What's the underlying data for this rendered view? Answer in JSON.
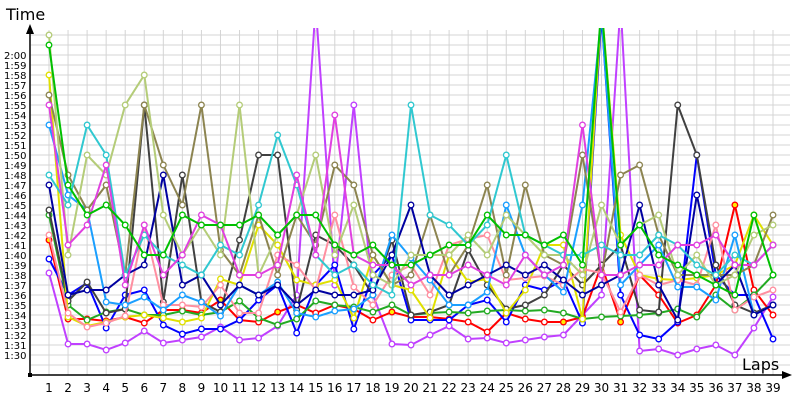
{
  "chart_data": {
    "type": "line",
    "title": "",
    "ylabel": "Time",
    "xlabel": "Laps",
    "ylim_seconds": [
      90,
      120
    ],
    "y_tick_labels": [
      "1:30",
      "1:31",
      "1:32",
      "1:33",
      "1:34",
      "1:35",
      "1:36",
      "1:37",
      "1:38",
      "1:39",
      "1:40",
      "1:41",
      "1:42",
      "1:43",
      "1:44",
      "1:45",
      "1:46",
      "1:47",
      "1:48",
      "1:49",
      "1:50",
      "1:51",
      "1:52",
      "1:53",
      "1:54",
      "1:55",
      "1:56",
      "1:57",
      "1:58",
      "1:59",
      "2:00"
    ],
    "x": [
      1,
      2,
      3,
      4,
      5,
      6,
      7,
      8,
      9,
      10,
      11,
      12,
      13,
      14,
      15,
      16,
      17,
      18,
      19,
      20,
      21,
      22,
      23,
      24,
      25,
      26,
      27,
      28,
      29,
      30,
      31,
      32,
      33,
      34,
      35,
      36,
      37,
      38,
      39
    ],
    "grid": true,
    "legend": "none",
    "series": [
      {
        "color": "#c040ff",
        "values": [
          98.2,
          91.1,
          91.1,
          90.5,
          91.2,
          92.4,
          91.2,
          91.5,
          91.8,
          92.8,
          91.5,
          91.7,
          92.9,
          96,
          125,
          97,
          115,
          96,
          91.1,
          91,
          92,
          92.9,
          91.6,
          91.7,
          91.2,
          91.5,
          91.8,
          92,
          94,
          96,
          125,
          90.4,
          90.6,
          90,
          90.6,
          91,
          90,
          92.7,
          95.8
        ]
      },
      {
        "color": "#ff0000",
        "values": [
          101.5,
          93.6,
          93.6,
          93.4,
          93.8,
          93.2,
          94.5,
          94.5,
          94.2,
          95.5,
          93.5,
          93.3,
          94.3,
          95,
          94.2,
          95,
          94.6,
          93.5,
          94.3,
          93.8,
          93.8,
          93.6,
          93.3,
          92.3,
          94.2,
          93.6,
          93.3,
          93.3,
          93.8,
          99,
          93.3,
          98,
          96,
          93.2,
          94,
          97,
          105,
          96.5,
          94
        ]
      },
      {
        "color": "#0000ff",
        "values": [
          99.6,
          96,
          97.2,
          92.7,
          96,
          96.5,
          93,
          92.1,
          92.6,
          92.6,
          93.5,
          95.5,
          97,
          92.2,
          97,
          99,
          92.6,
          98,
          100,
          93.5,
          93.5,
          93.5,
          95,
          95.5,
          93.3,
          97,
          96.5,
          97.5,
          93.2,
          124,
          96,
          92,
          91.6,
          93.3,
          110,
          98,
          96,
          96,
          91.6
        ]
      },
      {
        "color": "#22aa22",
        "values": [
          104,
          95,
          93.5,
          94.3,
          94.6,
          94,
          94,
          94.4,
          94,
          94.3,
          95.4,
          93.7,
          93,
          93.6,
          95.4,
          95,
          94.8,
          94.3,
          95,
          94,
          94.2,
          94.3,
          94.2,
          94.4,
          94.5,
          94.4,
          94.5,
          94.2,
          93.6,
          93.8,
          93.9,
          94,
          94.2,
          94.6,
          93.8,
          96,
          94.5,
          96,
          98
        ]
      },
      {
        "color": "#404040",
        "values": [
          104.5,
          95.4,
          97.3,
          94.2,
          94.6,
          115,
          95.3,
          108,
          95.3,
          94.3,
          101.5,
          110,
          110,
          94.5,
          102,
          101,
          99,
          96,
          101.5,
          94,
          94.3,
          95,
          100.5,
          97,
          94.6,
          95,
          96,
          99,
          97,
          99,
          101,
          94.5,
          94.3,
          115,
          110,
          99,
          95,
          94.2,
          95
        ]
      },
      {
        "color": "#e0e000",
        "values": [
          118,
          93.8,
          92.9,
          93.3,
          93.8,
          94,
          93.7,
          93.3,
          93.7,
          97.6,
          97,
          103,
          101,
          97.5,
          97,
          97.5,
          93.7,
          100,
          97,
          96.5,
          93.7,
          100,
          97.3,
          97.6,
          94.2,
          96.5,
          101,
          101,
          93.6,
          125,
          102,
          98,
          97.6,
          97.5,
          97.7,
          98,
          99,
          104,
          101
        ]
      },
      {
        "color": "#ff8fa0",
        "values": [
          102,
          94.2,
          92.8,
          93.2,
          93.9,
          103,
          95,
          95,
          94.8,
          97,
          94.2,
          94.2,
          100,
          99,
          96.5,
          104,
          96.8,
          95,
          98,
          99,
          96,
          101,
          101.6,
          102,
          97.5,
          97.7,
          97.9,
          97,
          98.6,
          98.2,
          94.3,
          98,
          97,
          97.5,
          97,
          103,
          94.5,
          95.8,
          96.5
        ]
      },
      {
        "color": "#1a9fff",
        "values": [
          113,
          106,
          104.5,
          95.3,
          95,
          95.8,
          94.5,
          96,
          95.3,
          93.9,
          97,
          96,
          97.3,
          94.2,
          93.8,
          94.4,
          94.6,
          96,
          102,
          99.7,
          97.5,
          95,
          95,
          96.3,
          105,
          100,
          98,
          96.3,
          105,
          124,
          97,
          99,
          101,
          96.8,
          96.8,
          95.5,
          102,
          94,
          95
        ]
      },
      {
        "color": "#8c8450",
        "values": [
          116,
          108,
          104.5,
          107,
          98,
          115,
          109,
          105,
          115,
          100.5,
          98,
          104,
          98,
          104,
          101,
          109,
          107,
          100,
          97,
          98,
          104,
          98,
          101,
          107,
          98,
          107,
          100,
          99,
          110,
          98,
          108,
          109,
          102,
          98,
          98,
          98,
          98,
          99,
          104
        ]
      },
      {
        "color": "#0000a0",
        "values": [
          107,
          96,
          96.5,
          96.5,
          98,
          99,
          108,
          97,
          98,
          95,
          97,
          96,
          97,
          95,
          96.5,
          96,
          96,
          96.5,
          100,
          105,
          98,
          96,
          97,
          98,
          99,
          98,
          99,
          97.5,
          96,
          97,
          98,
          105,
          97,
          93.5,
          106,
          97,
          99,
          94,
          95
        ]
      },
      {
        "color": "#b4cc78",
        "values": [
          122,
          100,
          110,
          108,
          115,
          118,
          104,
          100,
          103,
          100,
          115,
          98,
          102,
          104,
          110,
          100,
          105,
          98,
          97,
          100,
          100,
          100,
          102,
          100,
          104,
          102,
          100,
          100,
          98,
          105,
          101,
          103,
          104,
          98,
          100,
          97,
          98,
          102,
          103
        ]
      },
      {
        "color": "#30c8d0",
        "values": [
          108,
          105,
          113,
          110,
          98,
          102,
          100,
          99,
          98,
          101,
          100,
          105,
          112,
          107,
          100,
          98,
          99,
          97,
          96,
          115,
          104,
          103,
          101,
          103,
          110,
          102,
          101,
          100,
          100,
          101,
          100,
          100,
          102,
          101,
          99,
          98,
          100,
          99,
          101
        ]
      },
      {
        "color": "#e040e0",
        "values": [
          115,
          101,
          103,
          109,
          97,
          103,
          98,
          100,
          104,
          103,
          98,
          98,
          99,
          108,
          100,
          114,
          100,
          99,
          99,
          97,
          98,
          98,
          99,
          98,
          97,
          100,
          98,
          99,
          113,
          98,
          98,
          99,
          99,
          101,
          101,
          102,
          99,
          99,
          101
        ]
      },
      {
        "color": "#00c000",
        "values": [
          121,
          107,
          104,
          105,
          103,
          100,
          100,
          104,
          103,
          103,
          103,
          104,
          102,
          104,
          104,
          101,
          100,
          101,
          99,
          99,
          100,
          101,
          101,
          104,
          102,
          102,
          101,
          102,
          99,
          125,
          101,
          103,
          100,
          99,
          98,
          97,
          96,
          104,
          98
        ]
      }
    ]
  }
}
